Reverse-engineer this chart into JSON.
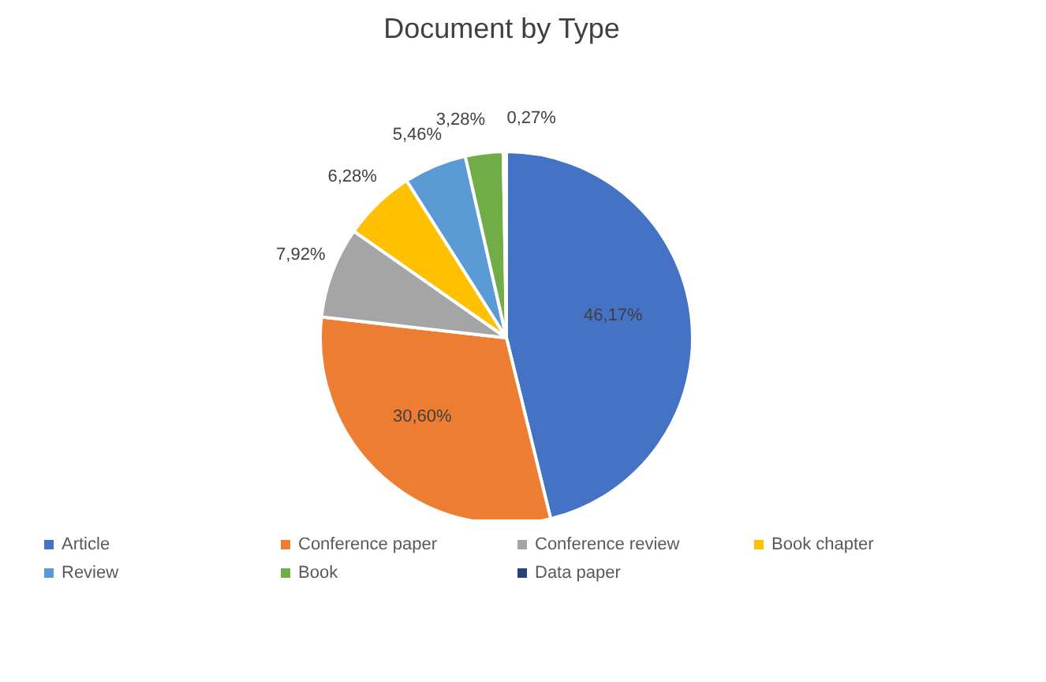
{
  "chart_data": {
    "type": "pie",
    "title": "Document by Type",
    "categories": [
      "Article",
      "Conference paper",
      "Conference review",
      "Book chapter",
      "Review",
      "Book",
      "Data paper"
    ],
    "values": [
      46.17,
      30.6,
      7.92,
      6.28,
      5.46,
      3.28,
      0.27
    ],
    "value_labels": [
      "46,17%",
      "30,60%",
      "7,92%",
      "6,28%",
      "5,46%",
      "3,28%",
      "0,27%"
    ],
    "colors": [
      "#4472c4",
      "#ed7d31",
      "#a5a5a5",
      "#ffc000",
      "#5b9bd5",
      "#70ad47",
      "#264478"
    ],
    "legend": "bottom"
  }
}
